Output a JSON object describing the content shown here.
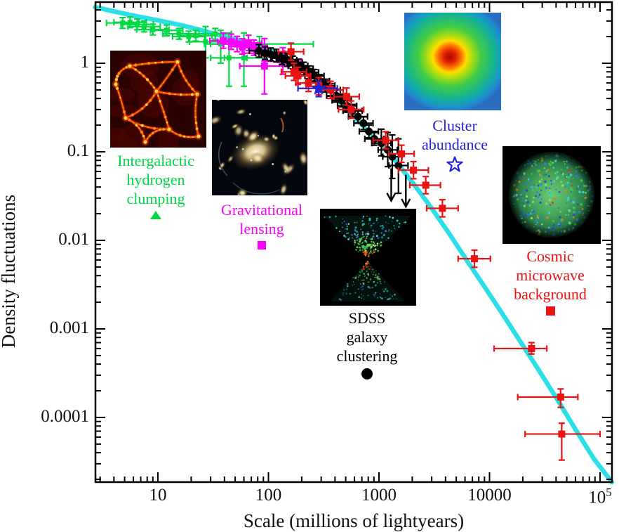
{
  "chart_data": {
    "type": "scatter",
    "title": "",
    "xlabel": "Scale (millions of lightyears)",
    "ylabel": "Density fluctuations",
    "xscale": "log",
    "yscale": "log",
    "grid": false,
    "xlim": [
      2.7,
      128000
    ],
    "ylim": [
      1.86e-05,
      4.9
    ],
    "x_ticks": [
      {
        "v": 10,
        "label": "10"
      },
      {
        "v": 100,
        "label": "100"
      },
      {
        "v": 1000,
        "label": "1000"
      },
      {
        "v": 10000,
        "label": "10000"
      },
      {
        "v": 100000,
        "label": "10^5"
      }
    ],
    "y_ticks": [
      {
        "v": 1,
        "label": "1"
      },
      {
        "v": 0.1,
        "label": "0.1"
      },
      {
        "v": 0.01,
        "label": "0.01"
      },
      {
        "v": 0.001,
        "label": "0.001"
      },
      {
        "v": 0.0001,
        "label": "0.0001"
      }
    ],
    "model_curve": {
      "name": "theoretical model curve",
      "color": "#2ae0e6",
      "points": [
        [
          2.7,
          4.3
        ],
        [
          4,
          3.85
        ],
        [
          6,
          3.45
        ],
        [
          10,
          3.05
        ],
        [
          16,
          2.7
        ],
        [
          25,
          2.35
        ],
        [
          40,
          2.0
        ],
        [
          63,
          1.72
        ],
        [
          100,
          1.45
        ],
        [
          140,
          1.18
        ],
        [
          200,
          0.93
        ],
        [
          280,
          0.66
        ],
        [
          400,
          0.42
        ],
        [
          560,
          0.27
        ],
        [
          800,
          0.17
        ],
        [
          1100,
          0.115
        ],
        [
          1500,
          0.072
        ],
        [
          2100,
          0.042
        ],
        [
          3000,
          0.023
        ],
        [
          4300,
          0.012
        ],
        [
          6200,
          0.006
        ],
        [
          9000,
          0.003
        ],
        [
          13000,
          0.0015
        ],
        [
          19000,
          0.00072
        ],
        [
          28000,
          0.00034
        ],
        [
          41000,
          0.00016
        ],
        [
          60000,
          7.3e-05
        ],
        [
          88000,
          3.4e-05
        ],
        [
          128000,
          1.86e-05
        ]
      ]
    },
    "series": [
      {
        "name": "Intergalactic hydrogen clumping",
        "marker": "square",
        "size": 7,
        "color": "#00d944",
        "xerr_factor": 1.4,
        "yerr_factor": 1.15,
        "points": [
          {
            "x": 4.8,
            "y": 2.85
          },
          {
            "x": 5.6,
            "y": 2.9
          },
          {
            "x": 6.5,
            "y": 2.75
          },
          {
            "x": 7.5,
            "y": 2.6
          },
          {
            "x": 9,
            "y": 2.4
          },
          {
            "x": 12,
            "y": 2.35
          },
          {
            "x": 15.5,
            "y": 2.15
          },
          {
            "x": 19,
            "y": 2.0
          },
          {
            "x": 22,
            "y": 2.05
          },
          {
            "x": 27,
            "y": 1.75,
            "yerr": [
              1.15,
              2.6
            ]
          },
          {
            "x": 33,
            "y": 2.15
          },
          {
            "x": 37,
            "y": 1.65,
            "yerr": [
              1.0,
              2.35
            ]
          },
          {
            "x": 44,
            "y": 1.15,
            "xerr": [
              30,
              64
            ],
            "yerr": [
              0.55,
              2.2
            ]
          },
          {
            "x": 60,
            "y": 1.15,
            "xerr": [
              40,
              92
            ],
            "yerr": [
              0.55,
              2.2
            ]
          },
          {
            "x": 83,
            "y": 1.65,
            "xerr": [
              30,
              255
            ],
            "yerr": [
              1.35,
              2.0
            ]
          }
        ]
      },
      {
        "name": "Gravitational lensing",
        "marker": "square",
        "size": 10,
        "color": "#fb00fb",
        "xerr_factor": 1.32,
        "yerr_factor": 1.22,
        "points": [
          {
            "x": 39,
            "y": 1.8
          },
          {
            "x": 46,
            "y": 1.75
          },
          {
            "x": 52,
            "y": 1.65
          },
          {
            "x": 58,
            "y": 1.55
          },
          {
            "x": 66,
            "y": 1.7
          },
          {
            "x": 74,
            "y": 1.5
          },
          {
            "x": 92,
            "y": 1.3,
            "xerr": [
              60,
              140
            ]
          },
          {
            "x": 92,
            "y": 0.93,
            "xerr": [
              55,
              150
            ],
            "yerr": [
              0.45,
              1.9
            ]
          },
          {
            "x": 135,
            "y": 1.05,
            "xerr": [
              90,
              200
            ],
            "yerr": [
              0.75,
              1.5
            ]
          }
        ]
      },
      {
        "name": "SDSS galaxy clustering",
        "marker": "circle",
        "size": 11,
        "color": "#000000",
        "xerr_factor": 1.22,
        "yerr_factor": 1.18,
        "points": [
          {
            "x": 82,
            "y": 1.38
          },
          {
            "x": 93,
            "y": 1.3
          },
          {
            "x": 105,
            "y": 1.26
          },
          {
            "x": 118,
            "y": 1.22
          },
          {
            "x": 132,
            "y": 1.14
          },
          {
            "x": 148,
            "y": 1.09
          },
          {
            "x": 166,
            "y": 1.02
          },
          {
            "x": 186,
            "y": 0.94
          },
          {
            "x": 208,
            "y": 0.87
          },
          {
            "x": 233,
            "y": 0.79
          },
          {
            "x": 261,
            "y": 0.72
          },
          {
            "x": 292,
            "y": 0.63
          },
          {
            "x": 327,
            "y": 0.56
          },
          {
            "x": 366,
            "y": 0.5
          },
          {
            "x": 410,
            "y": 0.43
          },
          {
            "x": 460,
            "y": 0.38
          },
          {
            "x": 515,
            "y": 0.33
          },
          {
            "x": 577,
            "y": 0.29
          },
          {
            "x": 646,
            "y": 0.25
          },
          {
            "x": 724,
            "y": 0.21
          },
          {
            "x": 810,
            "y": 0.17
          },
          {
            "x": 908,
            "y": 0.14
          },
          {
            "x": 1050,
            "y": 0.125,
            "yerr": [
              0.09,
              0.18
            ]
          },
          {
            "x": 1200,
            "y": 0.105,
            "yerr": [
              0.068,
              0.165
            ]
          },
          {
            "x": 1320,
            "y": 0.088,
            "yerr": [
              0.05,
              0.155
            ]
          },
          {
            "x": 1500,
            "y": 0.07,
            "yerr": [
              0.034,
              0.14
            ]
          }
        ]
      },
      {
        "name": "Cosmic microwave background",
        "marker": "square",
        "size": 10,
        "color": "#ea1212",
        "xerr_factor": 1.3,
        "yerr_factor": 1.25,
        "points": [
          {
            "x": 160,
            "y": 1.35
          },
          {
            "x": 170,
            "y": 0.8
          },
          {
            "x": 185,
            "y": 0.72
          },
          {
            "x": 230,
            "y": 0.6
          },
          {
            "x": 285,
            "y": 0.55
          },
          {
            "x": 365,
            "y": 0.5
          },
          {
            "x": 510,
            "y": 0.42
          },
          {
            "x": 560,
            "y": 0.3
          },
          {
            "x": 1150,
            "y": 0.135
          },
          {
            "x": 1600,
            "y": 0.095
          },
          {
            "x": 2050,
            "y": 0.062,
            "xerr": [
              1500,
              2800
            ]
          },
          {
            "x": 2650,
            "y": 0.042,
            "xerr": [
              1900,
              3600
            ]
          },
          {
            "x": 3750,
            "y": 0.023,
            "xerr": [
              2700,
              5200
            ]
          },
          {
            "x": 7300,
            "y": 0.0062,
            "xerr": [
              5200,
              10200
            ]
          },
          {
            "x": 24000,
            "y": 0.0006,
            "xerr": [
              11000,
              33000
            ],
            "yerr": [
              0.00052,
              0.0007
            ]
          },
          {
            "x": 44000,
            "y": 0.00017,
            "xerr": [
              18000,
              63000
            ],
            "yerr": [
              0.00013,
              0.00021
            ]
          },
          {
            "x": 45000,
            "y": 6.5e-05,
            "xerr": [
              21000,
              100000
            ],
            "yerr": [
              3.3e-05,
              8.6e-05
            ]
          }
        ]
      },
      {
        "name": "Cluster abundance",
        "marker": "star",
        "size": 19,
        "color": "#2323d2",
        "xerr_factor": 1.3,
        "yerr_factor": 1.15,
        "points": [
          {
            "x": 285,
            "y": 0.52,
            "xerr": [
              185,
              420
            ],
            "yerr": [
              0.42,
              0.63
            ]
          }
        ]
      }
    ],
    "upper_limits": [
      {
        "x": 1290,
        "y_from": 0.065,
        "y_to": 0.028,
        "color": "#000000"
      },
      {
        "x": 1750,
        "y_from": 0.055,
        "y_to": 0.024,
        "color": "#000000"
      }
    ]
  },
  "annotations": {
    "hydrogen": {
      "lines": [
        "Intergalactic",
        "hydrogen",
        "clumping"
      ],
      "color": "#00d944",
      "marker": "triangle"
    },
    "lensing": {
      "lines": [
        "Gravitational",
        "lensing"
      ],
      "color": "#fb00fb",
      "marker": "square"
    },
    "sdss": {
      "lines": [
        "SDSS",
        "galaxy",
        "clustering"
      ],
      "color": "#000000",
      "marker": "circle"
    },
    "cluster": {
      "lines": [
        "Cluster",
        "abundance"
      ],
      "color": "#2323d2",
      "marker": "open-star"
    },
    "cmb": {
      "lines": [
        "Cosmic",
        "microwave",
        "background"
      ],
      "color": "#ea1212",
      "marker": "square"
    }
  },
  "insets": {
    "hydrogen": "intergalactic-hydrogen-simulation-image",
    "lensing": "gravitational-lensing-cluster-image",
    "sdss": "sdss-galaxy-map-image",
    "cluster": "cluster-abundance-map-image",
    "cmb": "cmb-sky-sphere-image"
  },
  "colors": {
    "frame": "#000000",
    "curve": "#2ae0e6",
    "background": "#ffffff"
  }
}
